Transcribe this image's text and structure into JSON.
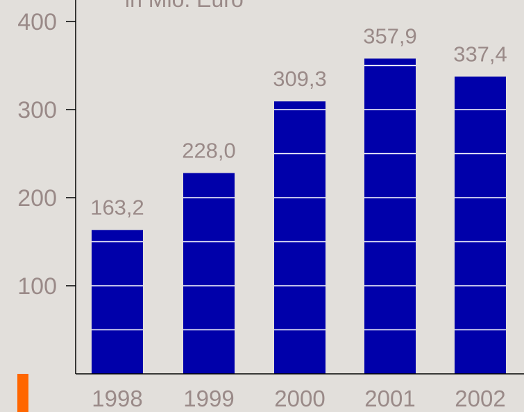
{
  "chart_data": {
    "type": "bar",
    "unit_label": "in Mio. Euro",
    "categories": [
      "1998",
      "1999",
      "2000",
      "2001",
      "2002"
    ],
    "values": [
      163.2,
      228.0,
      309.3,
      357.9,
      337.4
    ],
    "value_labels": [
      "163,2",
      "228,0",
      "309,3",
      "357,9",
      "337,4"
    ],
    "y_ticks": [
      100,
      200,
      300,
      400
    ],
    "y_tick_labels": [
      "100",
      "200",
      "300",
      "400"
    ],
    "ylim": [
      0,
      400
    ],
    "horizontal_bar_lines_every": 50,
    "colors": {
      "background": "#e2dfdb",
      "bar": "#0000aa",
      "bar_stripe": "#ffffff",
      "text": "#9a8a88",
      "axis": "#000000",
      "accent": "#ff6600"
    }
  }
}
